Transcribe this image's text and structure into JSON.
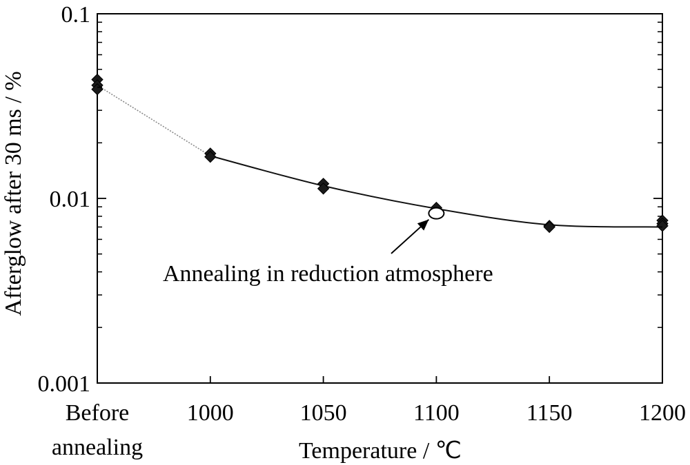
{
  "chart_data": {
    "type": "scatter",
    "x_categories": [
      "Before annealing",
      "1000",
      "1050",
      "1100",
      "1150",
      "1200"
    ],
    "xlabel": "Temperature / ℃",
    "ylabel": "Afterglow after 30 ms / %",
    "yscale": "log",
    "ylim": [
      0.001,
      0.1
    ],
    "y_tick_labels": [
      "0.1",
      "0.01",
      "0.001"
    ],
    "y_tick_values": [
      0.1,
      0.01,
      0.001
    ],
    "grid": false,
    "series": [
      {
        "marker": "filled-diamond",
        "color": "#1a1a1a",
        "points": [
          {
            "x": "Before annealing",
            "y": 0.044
          },
          {
            "x": "Before annealing",
            "y": 0.041
          },
          {
            "x": "Before annealing",
            "y": 0.039
          },
          {
            "x": "1000",
            "y": 0.0175
          },
          {
            "x": "1000",
            "y": 0.0168
          },
          {
            "x": "1050",
            "y": 0.012
          },
          {
            "x": "1050",
            "y": 0.0113
          },
          {
            "x": "1100",
            "y": 0.0089
          },
          {
            "x": "1150",
            "y": 0.0071
          },
          {
            "x": "1150",
            "y": 0.007
          },
          {
            "x": "1200",
            "y": 0.0076
          },
          {
            "x": "1200",
            "y": 0.0073
          },
          {
            "x": "1200",
            "y": 0.0071
          }
        ]
      }
    ],
    "trend_line": {
      "points": [
        {
          "x": "Before annealing",
          "y": 0.041
        },
        {
          "x": "1000",
          "y": 0.017
        },
        {
          "x": "1050",
          "y": 0.0117
        },
        {
          "x": "1100",
          "y": 0.0088
        },
        {
          "x": "1150",
          "y": 0.0072
        },
        {
          "x": "1200",
          "y": 0.007
        }
      ]
    },
    "special_point": {
      "x": "1100",
      "y": 0.0083,
      "marker": "open-circle"
    },
    "annotation": {
      "text": "Annealing in reduction atmosphere",
      "points_to": {
        "x": "1100",
        "y": 0.0083
      }
    }
  }
}
